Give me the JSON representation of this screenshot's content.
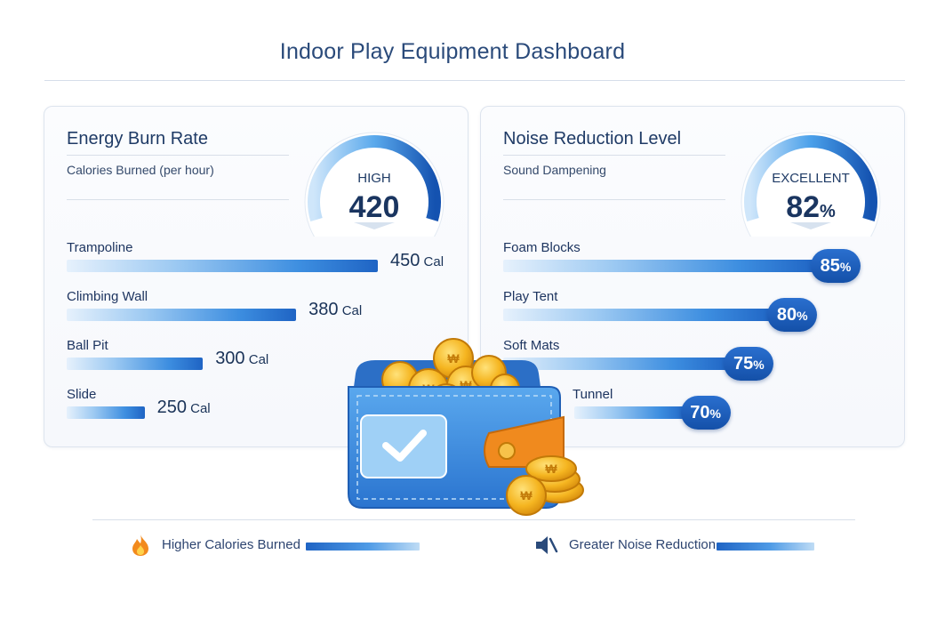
{
  "title": "Indoor Play Equipment Dashboard",
  "colors": {
    "accent": "#1f64c4",
    "title": "#2a4a7a",
    "badge": "#1a5bb8",
    "flame": "#f28a1d",
    "wallet": "#3b8fe0",
    "coin": "#f5b520"
  },
  "icons": {
    "legend_left": "flame-icon",
    "legend_right": "muted-speaker-icon",
    "decoration": "wallet-with-coins-icon"
  },
  "chart_data": [
    {
      "type": "bar",
      "orientation": "horizontal",
      "title": "Energy Burn Rate",
      "subtitle": "Calories Burned (per hour)",
      "unit": "Cal",
      "gauge": {
        "label": "HIGH",
        "value": 420
      },
      "categories": [
        "Trampoline",
        "Climbing Wall",
        "Ball Pit",
        "Slide"
      ],
      "values": [
        450,
        380,
        300,
        250
      ],
      "grid": false
    },
    {
      "type": "bar",
      "orientation": "horizontal",
      "title": "Noise Reduction Level",
      "subtitle": "Sound Dampening",
      "unit": "%",
      "gauge": {
        "label": "EXCELLENT",
        "value": 82
      },
      "categories": [
        "Foam Blocks",
        "Play Tent",
        "Soft Mats",
        "Tunnel"
      ],
      "values": [
        85,
        80,
        75,
        70
      ],
      "grid": false
    }
  ],
  "legend": [
    {
      "label": "Higher Calories Burned",
      "icon": "flame-icon"
    },
    {
      "label": "Greater Noise Reduction",
      "icon": "muted-speaker-icon"
    }
  ]
}
